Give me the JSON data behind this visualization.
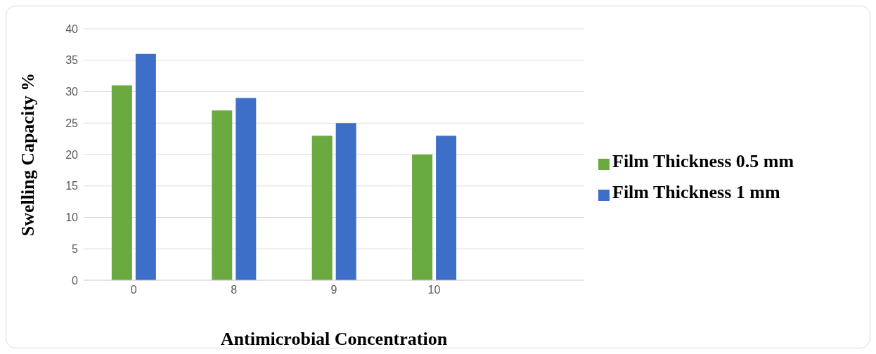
{
  "chart_data": {
    "type": "bar",
    "xlabel": "Antimicrobial Concentration",
    "ylabel": "Swelling Capacity %",
    "categories": [
      "0",
      "8",
      "9",
      "10",
      null
    ],
    "series": [
      {
        "name": "Film Thickness 0.5 mm",
        "color": "#6aaa40",
        "values": [
          31,
          27,
          23,
          20,
          null
        ]
      },
      {
        "name": "Film Thickness 1 mm",
        "color": "#3d6fc9",
        "values": [
          36,
          29,
          25,
          23,
          null
        ]
      }
    ],
    "ylim": [
      0,
      40
    ],
    "yticks": [
      0,
      5,
      10,
      15,
      20,
      25,
      30,
      35,
      40
    ],
    "grid": "y",
    "legend": "right"
  }
}
